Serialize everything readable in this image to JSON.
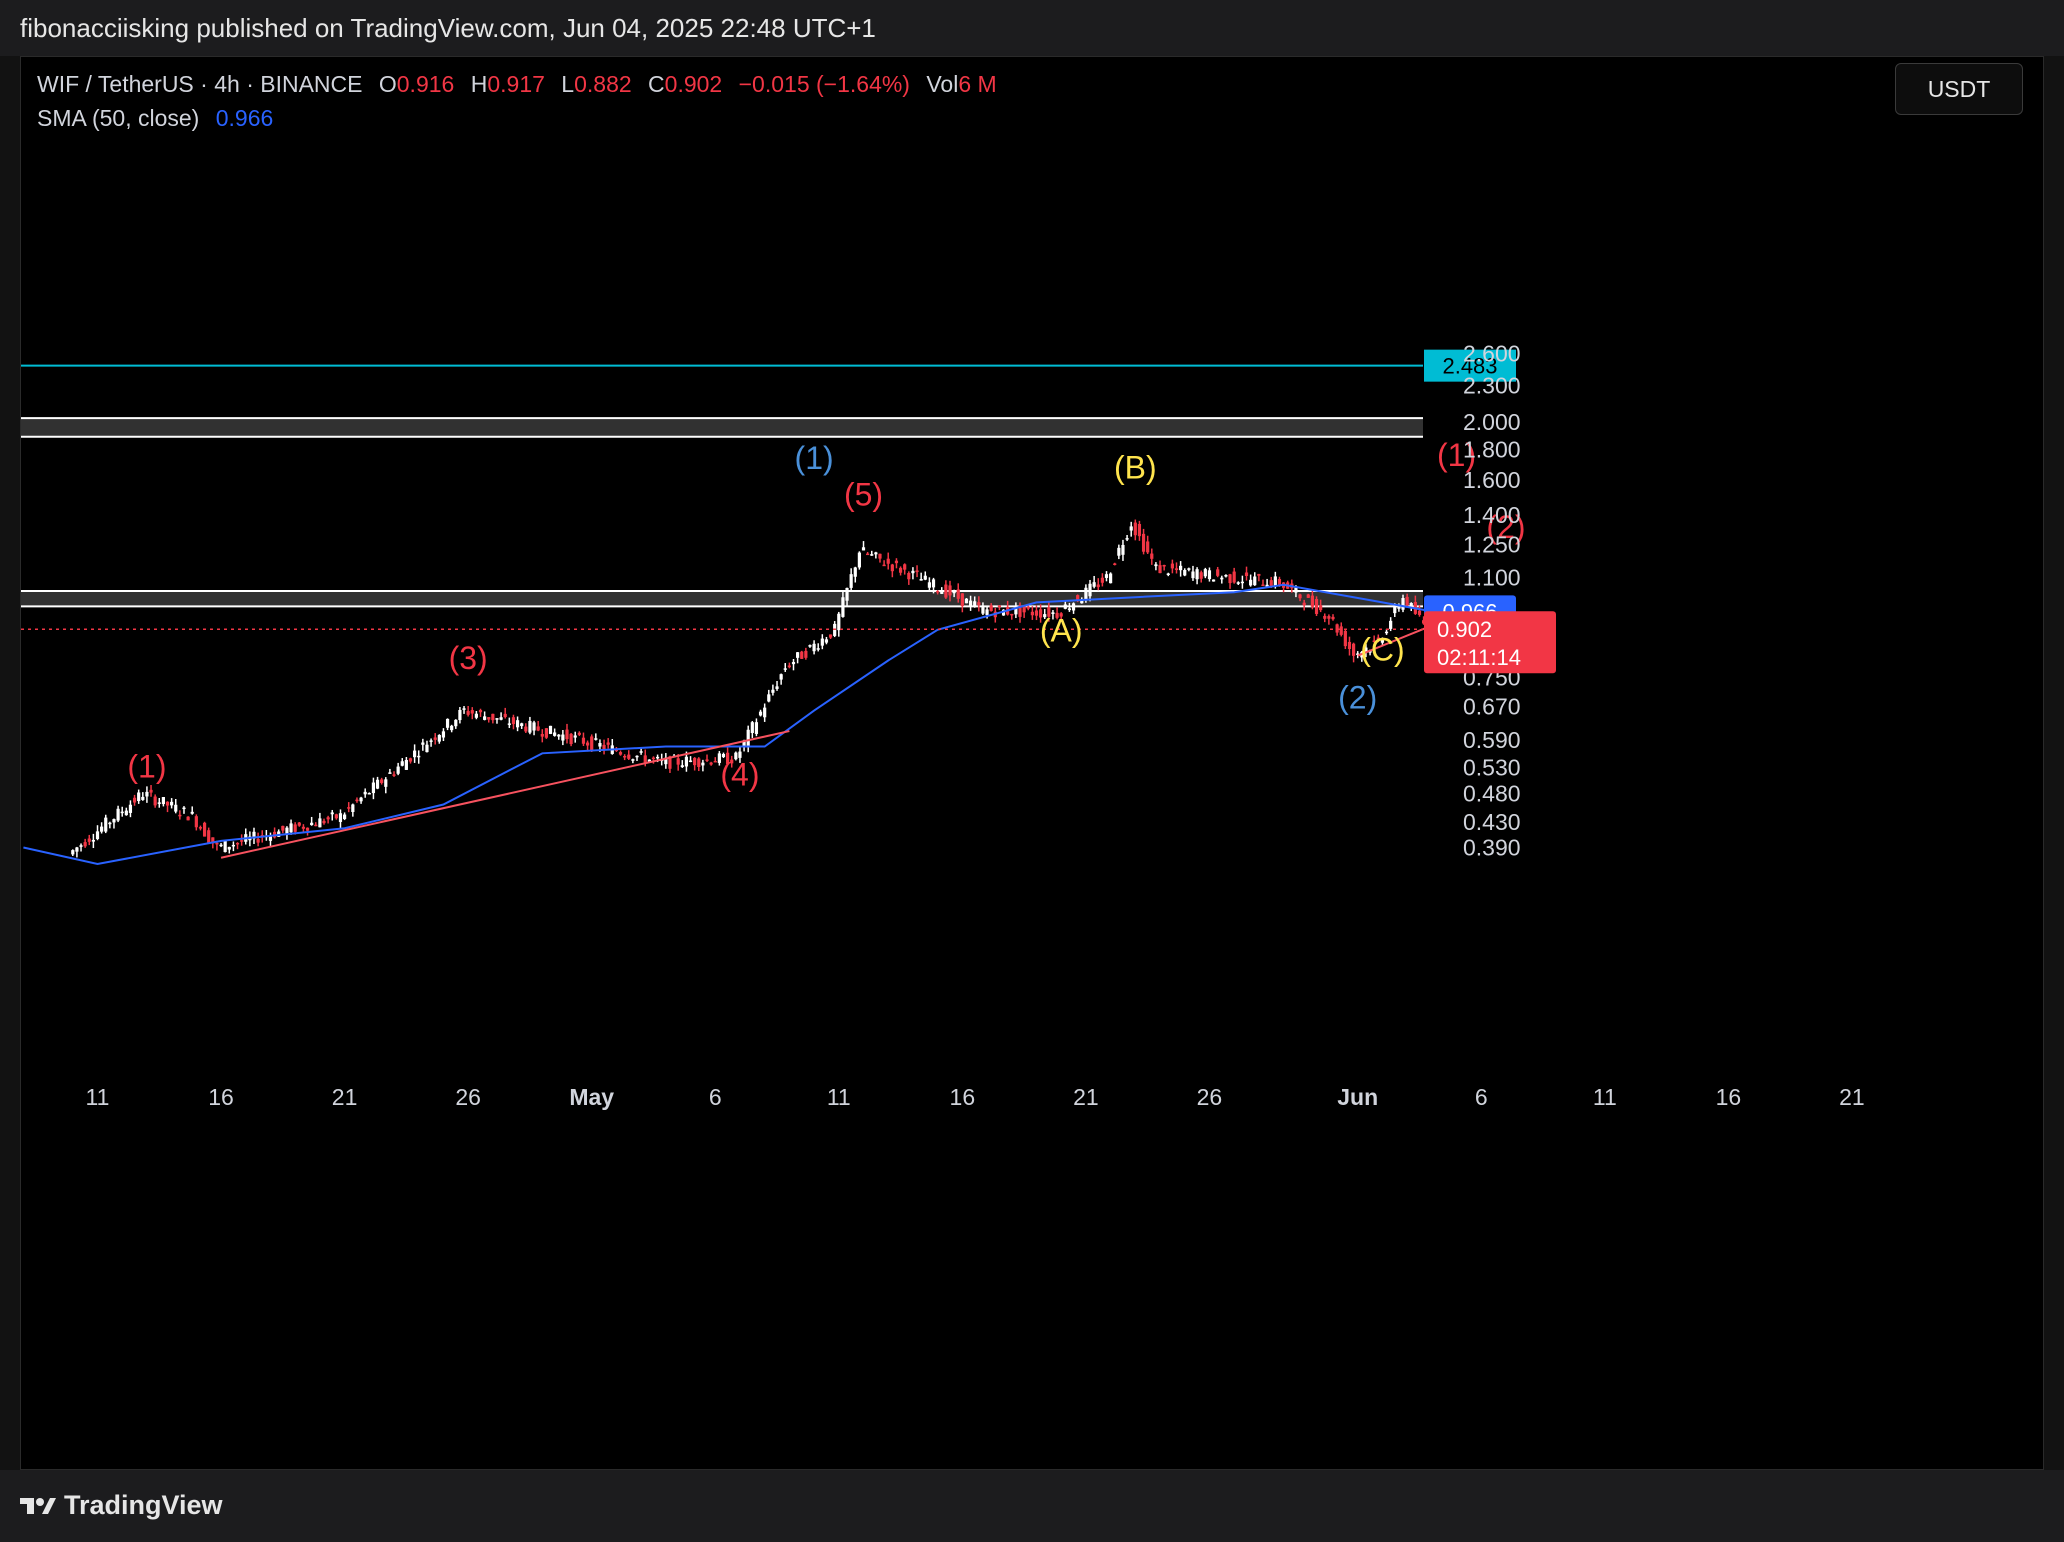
{
  "header": {
    "published_text": "fibonacciisking published on TradingView.com, Jun 04, 2025 22:48 UTC+1"
  },
  "legend": {
    "symbol": "WIF / TetherUS · 4h · BINANCE",
    "open_label": "O",
    "open": "0.916",
    "high_label": "H",
    "high": "0.917",
    "low_label": "L",
    "low": "0.882",
    "close_label": "C",
    "close": "0.902",
    "change": "−0.015 (−1.64%)",
    "vol_label": "Vol",
    "vol": "6 M",
    "sma_label": "SMA (50, close)",
    "sma_value": "0.966"
  },
  "currency_button": "USDT",
  "footer": {
    "brand": "TradingView"
  },
  "colors": {
    "up": "#ffffff",
    "down": "#f23645",
    "sma": "#2962ff",
    "cyan_level": "#00bcd4",
    "trendline": "#f7525f",
    "wave_red": "#f23645",
    "wave_blue": "#4a90d9",
    "wave_yellow": "#ffe44d"
  },
  "chart_data": {
    "type": "candlestick",
    "title": "WIF / TetherUS · 4h · BINANCE",
    "scale": "log",
    "ylim": [
      0.36,
      2.9
    ],
    "x_ticks": [
      "11",
      "16",
      "21",
      "26",
      "May",
      "6",
      "11",
      "16",
      "21",
      "26",
      "Jun",
      "6",
      "11",
      "16",
      "21"
    ],
    "y_ticks": [
      "2.600",
      "2.300",
      "2.000",
      "1.800",
      "1.600",
      "1.400",
      "1.250",
      "1.100",
      "0.750",
      "0.670",
      "0.590",
      "0.530",
      "0.480",
      "0.430",
      "0.390"
    ],
    "price_path": [
      [
        "Apr 10",
        0.38
      ],
      [
        "Apr 13",
        0.48
      ],
      [
        "Apr 15",
        0.44
      ],
      [
        "Apr 16",
        0.39
      ],
      [
        "Apr 21",
        0.44
      ],
      [
        "Apr 26",
        0.66
      ],
      [
        "Apr 30",
        0.6
      ],
      [
        "May 4",
        0.54
      ],
      [
        "May 7",
        0.55
      ],
      [
        "May 9",
        0.78
      ],
      [
        "May 11",
        0.9
      ],
      [
        "May 12",
        1.22
      ],
      [
        "May 14",
        1.12
      ],
      [
        "May 17",
        0.97
      ],
      [
        "May 20",
        0.96
      ],
      [
        "May 22",
        1.1
      ],
      [
        "May 23",
        1.36
      ],
      [
        "May 24",
        1.14
      ],
      [
        "May 27",
        1.1
      ],
      [
        "May 29",
        1.08
      ],
      [
        "May 31",
        0.95
      ],
      [
        "Jun 1",
        0.82
      ],
      [
        "Jun 2",
        0.86
      ],
      [
        "Jun 3",
        1.02
      ],
      [
        "Jun 4",
        0.902
      ]
    ],
    "sma_50": [
      [
        "Apr 8",
        0.39
      ],
      [
        "Apr 11",
        0.366
      ],
      [
        "Apr 16",
        0.4
      ],
      [
        "Apr 21",
        0.42
      ],
      [
        "Apr 25",
        0.46
      ],
      [
        "Apr 29",
        0.56
      ],
      [
        "May 4",
        0.575
      ],
      [
        "May 8",
        0.575
      ],
      [
        "May 10",
        0.66
      ],
      [
        "May 13",
        0.8
      ],
      [
        "May 15",
        0.9
      ],
      [
        "May 19",
        1.0
      ],
      [
        "May 23",
        1.02
      ],
      [
        "May 27",
        1.04
      ],
      [
        "May 29",
        1.07
      ],
      [
        "Jun 2",
        1.0
      ],
      [
        "Jun 4",
        0.966
      ]
    ],
    "current_price": 0.902,
    "current_price_countdown": "02:11:14",
    "sma_current": 0.966,
    "horizontal_levels": [
      2.483
    ],
    "zones": [
      {
        "low": 1.89,
        "high": 2.03
      },
      {
        "low": 0.985,
        "high": 1.045
      }
    ],
    "wave_labels": [
      {
        "text": "(1)",
        "date": "Apr 13",
        "price": 0.51,
        "color": "red"
      },
      {
        "text": "(3)",
        "date": "Apr 26",
        "price": 0.775,
        "color": "red"
      },
      {
        "text": "(4)",
        "date": "May 7",
        "price": 0.495,
        "color": "red"
      },
      {
        "text": "(5)",
        "date": "May 12",
        "price": 1.45,
        "color": "red"
      },
      {
        "text": "(1)",
        "date": "May 10",
        "price": 1.67,
        "color": "blue"
      },
      {
        "text": "(B)",
        "date": "May 23",
        "price": 1.61,
        "color": "yellow"
      },
      {
        "text": "(A)",
        "date": "May 20",
        "price": 0.86,
        "color": "yellow"
      },
      {
        "text": "(C)",
        "date": "Jun 2",
        "price": 0.8,
        "color": "yellow"
      },
      {
        "text": "(2)",
        "date": "Jun 1",
        "price": 0.665,
        "color": "blue"
      },
      {
        "text": "(1)",
        "date": "Jun 5",
        "price": 1.69,
        "color": "red"
      },
      {
        "text": "(2)",
        "date": "Jun 7",
        "price": 1.28,
        "color": "red"
      }
    ],
    "trendlines": [
      {
        "from": [
          "Apr 16",
          0.375
        ],
        "to": [
          "May 9",
          0.61
        ]
      },
      {
        "from": [
          "Jun 1",
          0.815
        ],
        "to": [
          "Jun 4",
          0.915
        ]
      }
    ]
  }
}
